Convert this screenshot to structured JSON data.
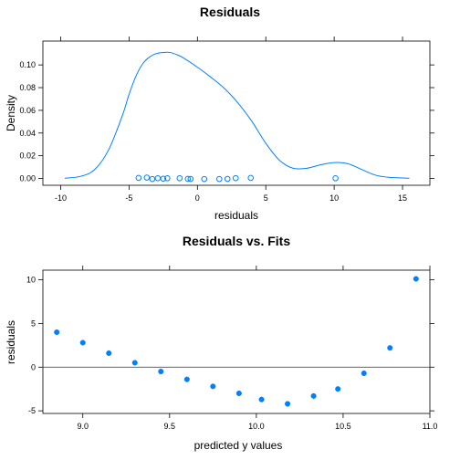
{
  "chart_data": [
    {
      "type": "line",
      "title": "Residuals",
      "xlabel": "residuals",
      "ylabel": "Density",
      "xlim": [
        -11.3,
        17.0
      ],
      "ylim": [
        -0.006,
        0.121
      ],
      "xticks": [
        -10,
        -5,
        0,
        5,
        10,
        15
      ],
      "xtick_labels": [
        "-10",
        "-5",
        "0",
        "5",
        "10",
        "15"
      ],
      "yticks": [
        0.0,
        0.02,
        0.04,
        0.06,
        0.08,
        0.1
      ],
      "ytick_labels": [
        "0.00",
        "0.02",
        "0.04",
        "0.06",
        "0.08",
        "0.10"
      ],
      "line_color": "#0080ff",
      "density": {
        "x": [
          -9.7,
          -8.5,
          -7.5,
          -6.5,
          -5.5,
          -5.0,
          -4.5,
          -4.0,
          -3.5,
          -3.0,
          -2.5,
          -2.0,
          -1.5,
          -1.0,
          0.0,
          1.0,
          2.0,
          3.0,
          4.0,
          5.0,
          6.0,
          7.0,
          8.0,
          9.0,
          10.0,
          11.0,
          12.0,
          13.0,
          14.0,
          15.5
        ],
        "y": [
          0.0002,
          0.002,
          0.008,
          0.025,
          0.055,
          0.074,
          0.09,
          0.101,
          0.107,
          0.11,
          0.111,
          0.111,
          0.109,
          0.106,
          0.098,
          0.089,
          0.079,
          0.066,
          0.05,
          0.031,
          0.016,
          0.009,
          0.009,
          0.012,
          0.014,
          0.013,
          0.008,
          0.003,
          0.001,
          0.0002
        ]
      },
      "rug_points": {
        "x": [
          -4.3,
          -3.7,
          -3.3,
          -2.9,
          -2.5,
          -2.2,
          -1.3,
          -0.7,
          -0.5,
          0.5,
          1.6,
          2.2,
          2.8,
          3.9,
          10.1
        ],
        "y": [
          0.0005,
          0.0008,
          -0.0005,
          0.0002,
          -0.0002,
          0.0002,
          0.0002,
          -0.0003,
          -0.0004,
          -0.0005,
          -0.0005,
          -0.0004,
          0.0003,
          0.0005,
          0.0002
        ]
      }
    },
    {
      "type": "scatter",
      "title": "Residuals vs. Fits",
      "xlabel": "predicted y values",
      "ylabel": "residuals",
      "xlim": [
        8.77,
        11.0
      ],
      "ylim": [
        -5.3,
        11.1
      ],
      "xticks": [
        9.0,
        9.5,
        10.0,
        10.5,
        11.0
      ],
      "xtick_labels": [
        "9.0",
        "9.5",
        "10.0",
        "10.5",
        "11.0"
      ],
      "yticks": [
        -5,
        0,
        5,
        10
      ],
      "ytick_labels": [
        "-5",
        "0",
        "5",
        "10"
      ],
      "reference_line": 0,
      "point_color": "#0080ff",
      "x": [
        8.85,
        9.0,
        9.15,
        9.3,
        9.45,
        9.6,
        9.75,
        9.9,
        10.03,
        10.18,
        10.33,
        10.47,
        10.62,
        10.77,
        10.92
      ],
      "y": [
        4.0,
        2.8,
        1.6,
        0.5,
        -0.5,
        -1.4,
        -2.2,
        -3.0,
        -3.7,
        -4.2,
        -3.3,
        -2.5,
        -0.7,
        2.2,
        10.1
      ]
    }
  ]
}
